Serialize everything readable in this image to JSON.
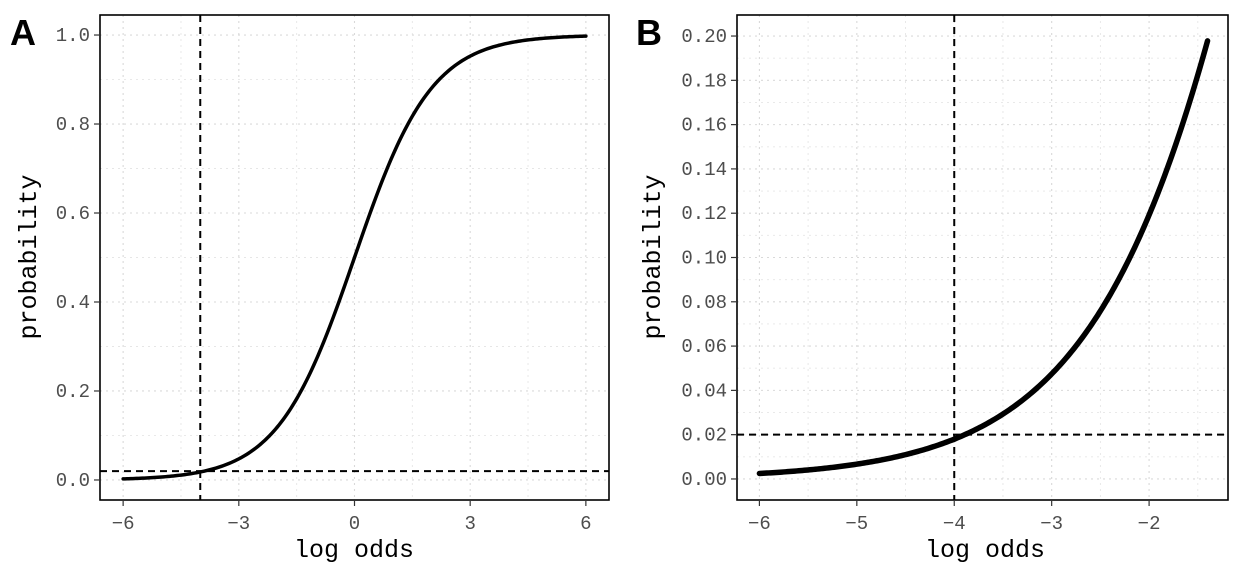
{
  "chart_data": [
    {
      "type": "line",
      "panel_label": "A",
      "xlabel": "log odds",
      "ylabel": "probability",
      "xlim": [
        -6.6,
        6.6
      ],
      "ylim": [
        -0.045,
        1.045
      ],
      "x_ticks": [
        -6,
        -3,
        0,
        3,
        6
      ],
      "x_tick_labels": [
        "−6",
        "−3",
        "0",
        "3",
        "6"
      ],
      "y_ticks": [
        0.0,
        0.2,
        0.4,
        0.6,
        0.8,
        1.0
      ],
      "y_tick_labels": [
        "0.0",
        "0.2",
        "0.4",
        "0.6",
        "0.8",
        "1.0"
      ],
      "grid": true,
      "series": [
        {
          "function": "logistic",
          "x": [
            -6,
            -5.5,
            -5,
            -4.5,
            -4,
            -3.5,
            -3,
            -2.5,
            -2,
            -1.5,
            -1,
            -0.5,
            0,
            0.5,
            1,
            1.5,
            2,
            2.5,
            3,
            3.5,
            4,
            4.5,
            5,
            5.5,
            6
          ],
          "values": [
            0.0025,
            0.0041,
            0.0067,
            0.011,
            0.018,
            0.029,
            0.047,
            0.076,
            0.119,
            0.182,
            0.269,
            0.378,
            0.5,
            0.622,
            0.731,
            0.818,
            0.881,
            0.924,
            0.953,
            0.971,
            0.982,
            0.989,
            0.993,
            0.996,
            0.998
          ]
        }
      ],
      "reference_lines": {
        "vertical_x": -4,
        "horizontal_y": 0.02
      }
    },
    {
      "type": "line",
      "panel_label": "B",
      "xlabel": "log odds",
      "ylabel": "probability",
      "xlim": [
        -6.23,
        -1.19
      ],
      "ylim": [
        -0.0095,
        0.2095
      ],
      "x_ticks": [
        -6,
        -5,
        -4,
        -3,
        -2
      ],
      "x_tick_labels": [
        "−6",
        "−5",
        "−4",
        "−3",
        "−2"
      ],
      "y_ticks": [
        0.0,
        0.02,
        0.04,
        0.06,
        0.08,
        0.1,
        0.12,
        0.14,
        0.16,
        0.18,
        0.2
      ],
      "y_tick_labels": [
        "0.00",
        "0.02",
        "0.04",
        "0.06",
        "0.08",
        "0.10",
        "0.12",
        "0.14",
        "0.16",
        "0.18",
        "0.20"
      ],
      "grid": true,
      "series": [
        {
          "function": "logistic",
          "x": [
            -6,
            -5.5,
            -5,
            -4.5,
            -4,
            -3.5,
            -3,
            -2.5,
            -2,
            -1.6,
            -1.4
          ],
          "values": [
            0.0025,
            0.0041,
            0.0067,
            0.011,
            0.018,
            0.029,
            0.047,
            0.076,
            0.119,
            0.168,
            0.198
          ]
        }
      ],
      "reference_lines": {
        "vertical_x": -4,
        "horizontal_y": 0.02
      }
    }
  ]
}
